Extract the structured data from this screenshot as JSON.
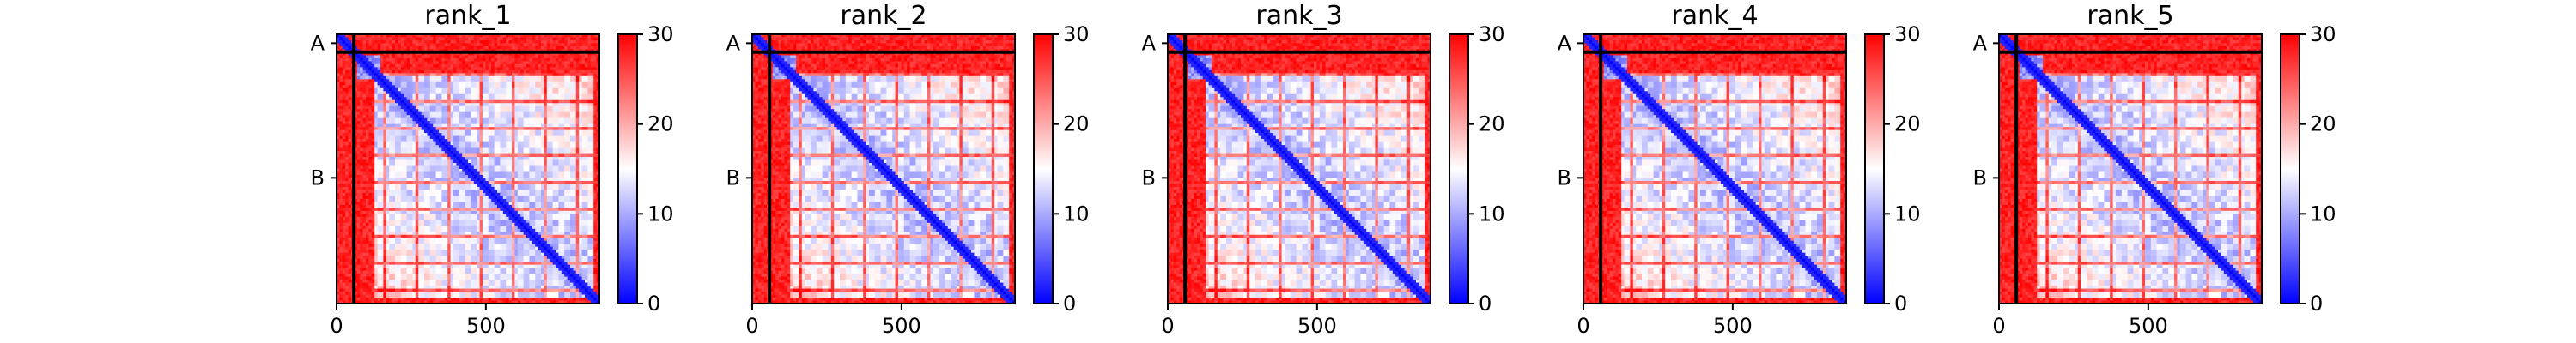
{
  "chart_data": [
    {
      "type": "heatmap",
      "title": "rank_1",
      "x_ticks": [
        "0",
        "500"
      ],
      "x_tick_values": [
        0,
        500
      ],
      "y_ticks": [
        "A",
        "B"
      ],
      "xlim": [
        0,
        880
      ],
      "ylim": [
        880,
        0
      ],
      "chains": [
        {
          "name": "A",
          "start": 0,
          "end": 58
        },
        {
          "name": "B",
          "start": 58,
          "end": 880
        }
      ],
      "colorbar": {
        "range": [
          0,
          30
        ],
        "ticks": [
          "0",
          "10",
          "20",
          "30"
        ],
        "tick_values": [
          0,
          10,
          20,
          30
        ],
        "colors": [
          "#0000ff",
          "#ffffff",
          "#ff0000"
        ]
      }
    },
    {
      "type": "heatmap",
      "title": "rank_2",
      "x_ticks": [
        "0",
        "500"
      ],
      "x_tick_values": [
        0,
        500
      ],
      "y_ticks": [
        "A",
        "B"
      ],
      "xlim": [
        0,
        880
      ],
      "ylim": [
        880,
        0
      ],
      "chains": [
        {
          "name": "A",
          "start": 0,
          "end": 58
        },
        {
          "name": "B",
          "start": 58,
          "end": 880
        }
      ],
      "colorbar": {
        "range": [
          0,
          30
        ],
        "ticks": [
          "0",
          "10",
          "20",
          "30"
        ],
        "tick_values": [
          0,
          10,
          20,
          30
        ],
        "colors": [
          "#0000ff",
          "#ffffff",
          "#ff0000"
        ]
      }
    },
    {
      "type": "heatmap",
      "title": "rank_3",
      "x_ticks": [
        "0",
        "500"
      ],
      "x_tick_values": [
        0,
        500
      ],
      "y_ticks": [
        "A",
        "B"
      ],
      "xlim": [
        0,
        880
      ],
      "ylim": [
        880,
        0
      ],
      "chains": [
        {
          "name": "A",
          "start": 0,
          "end": 58
        },
        {
          "name": "B",
          "start": 58,
          "end": 880
        }
      ],
      "colorbar": {
        "range": [
          0,
          30
        ],
        "ticks": [
          "0",
          "10",
          "20",
          "30"
        ],
        "tick_values": [
          0,
          10,
          20,
          30
        ],
        "colors": [
          "#0000ff",
          "#ffffff",
          "#ff0000"
        ]
      }
    },
    {
      "type": "heatmap",
      "title": "rank_4",
      "x_ticks": [
        "0",
        "500"
      ],
      "x_tick_values": [
        0,
        500
      ],
      "y_ticks": [
        "A",
        "B"
      ],
      "xlim": [
        0,
        880
      ],
      "ylim": [
        880,
        0
      ],
      "chains": [
        {
          "name": "A",
          "start": 0,
          "end": 58
        },
        {
          "name": "B",
          "start": 58,
          "end": 880
        }
      ],
      "colorbar": {
        "range": [
          0,
          30
        ],
        "ticks": [
          "0",
          "10",
          "20",
          "30"
        ],
        "tick_values": [
          0,
          10,
          20,
          30
        ],
        "colors": [
          "#0000ff",
          "#ffffff",
          "#ff0000"
        ]
      }
    },
    {
      "type": "heatmap",
      "title": "rank_5",
      "x_ticks": [
        "0",
        "500"
      ],
      "x_tick_values": [
        0,
        500
      ],
      "y_ticks": [
        "A",
        "B"
      ],
      "xlim": [
        0,
        880
      ],
      "ylim": [
        880,
        0
      ],
      "chains": [
        {
          "name": "A",
          "start": 0,
          "end": 58
        },
        {
          "name": "B",
          "start": 58,
          "end": 880
        }
      ],
      "colorbar": {
        "range": [
          0,
          30
        ],
        "ticks": [
          "0",
          "10",
          "20",
          "30"
        ],
        "tick_values": [
          0,
          10,
          20,
          30
        ],
        "colors": [
          "#0000ff",
          "#ffffff",
          "#ff0000"
        ]
      }
    }
  ]
}
